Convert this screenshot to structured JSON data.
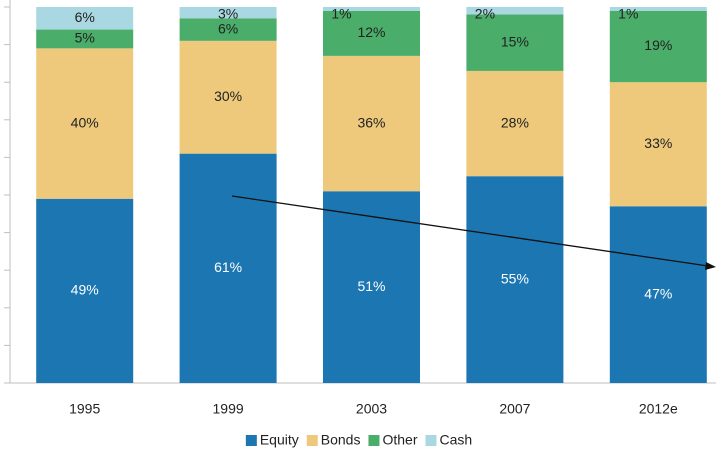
{
  "chart_data": {
    "type": "bar",
    "stacked": true,
    "categories": [
      "1995",
      "1999",
      "2003",
      "2007",
      "2012e"
    ],
    "series": [
      {
        "name": "Equity",
        "color": "#1b76b2",
        "values": [
          49,
          61,
          51,
          55,
          47
        ],
        "value_labels": [
          "49%",
          "61%",
          "51%",
          "55%",
          "47%"
        ]
      },
      {
        "name": "Bonds",
        "color": "#efc97b",
        "values": [
          40,
          30,
          36,
          28,
          33
        ],
        "value_labels": [
          "40%",
          "30%",
          "36%",
          "28%",
          "33%"
        ]
      },
      {
        "name": "Other",
        "color": "#4aad69",
        "values": [
          5,
          6,
          12,
          15,
          19
        ],
        "value_labels": [
          "5%",
          "6%",
          "12%",
          "15%",
          "19%"
        ]
      },
      {
        "name": "Cash",
        "color": "#a9d8e2",
        "values": [
          6,
          3,
          1,
          2,
          1
        ],
        "value_labels": [
          "6%",
          "3%",
          "1%",
          "2%",
          "1%"
        ]
      }
    ],
    "ylim": [
      0,
      100
    ],
    "yticks": [
      0,
      10,
      20,
      30,
      40,
      50,
      60,
      70,
      80,
      90,
      100
    ],
    "legend": "bottom"
  }
}
